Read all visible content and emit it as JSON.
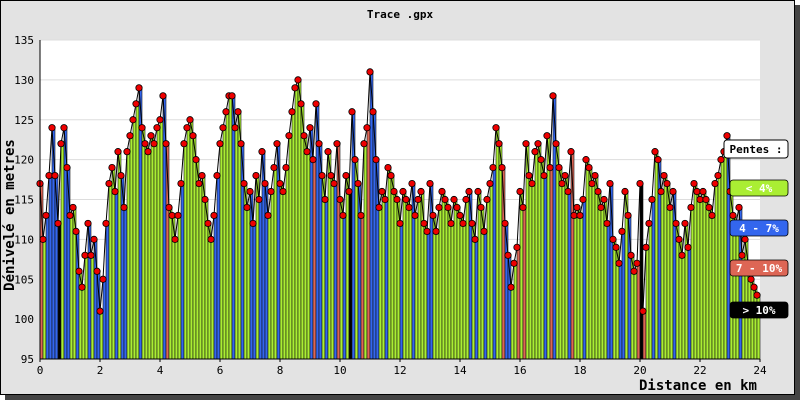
{
  "colors": {
    "frame_bg": "#e3e3e3",
    "plot_bg": "#ffffff",
    "grid": "#dddddd",
    "marker": "#ee0000",
    "stem": "#000000"
  },
  "chart_data": {
    "type": "bar",
    "title": "Trace .gpx",
    "xlabel": "Distance en km",
    "ylabel": "Dénivelé en metres",
    "xlim": [
      0,
      24
    ],
    "ylim": [
      95,
      135
    ],
    "x_ticks": [
      0,
      2,
      4,
      6,
      8,
      10,
      12,
      14,
      16,
      18,
      20,
      22,
      24
    ],
    "y_ticks": [
      95,
      100,
      105,
      110,
      115,
      120,
      125,
      130,
      135
    ],
    "grid": true,
    "legend_position": "right",
    "legend": {
      "title": "Pentes :",
      "items": [
        {
          "label": "< 4%",
          "color": "#aaee33",
          "text_color": "#ffffff"
        },
        {
          "label": "4 - 7%",
          "color": "#3366ee",
          "text_color": "#ffffff"
        },
        {
          "label": "7 - 10%",
          "color": "#dd6655",
          "text_color": "#ffffff"
        },
        {
          "label": "> 10%",
          "color": "#000000",
          "text_color": "#ffffff"
        }
      ]
    },
    "series": [
      {
        "values": [
          [
            0.0,
            117
          ],
          [
            0.1,
            110
          ],
          [
            0.2,
            113
          ],
          [
            0.3,
            118
          ],
          [
            0.4,
            124
          ],
          [
            0.5,
            118
          ],
          [
            0.6,
            112
          ],
          [
            0.7,
            122
          ],
          [
            0.8,
            124
          ],
          [
            0.9,
            119
          ],
          [
            1.0,
            113
          ],
          [
            1.1,
            114
          ],
          [
            1.2,
            111
          ],
          [
            1.3,
            106
          ],
          [
            1.4,
            104
          ],
          [
            1.5,
            108
          ],
          [
            1.6,
            112
          ],
          [
            1.7,
            108
          ],
          [
            1.8,
            110
          ],
          [
            1.9,
            106
          ],
          [
            2.0,
            101
          ],
          [
            2.1,
            105
          ],
          [
            2.2,
            112
          ],
          [
            2.3,
            117
          ],
          [
            2.4,
            119
          ],
          [
            2.5,
            116
          ],
          [
            2.6,
            121
          ],
          [
            2.7,
            118
          ],
          [
            2.8,
            114
          ],
          [
            2.9,
            121
          ],
          [
            3.0,
            123
          ],
          [
            3.1,
            125
          ],
          [
            3.2,
            127
          ],
          [
            3.3,
            129
          ],
          [
            3.4,
            124
          ],
          [
            3.5,
            122
          ],
          [
            3.6,
            121
          ],
          [
            3.7,
            123
          ],
          [
            3.8,
            122
          ],
          [
            3.9,
            124
          ],
          [
            4.0,
            125
          ],
          [
            4.1,
            128
          ],
          [
            4.2,
            122
          ],
          [
            4.3,
            114
          ],
          [
            4.4,
            113
          ],
          [
            4.5,
            110
          ],
          [
            4.6,
            113
          ],
          [
            4.7,
            117
          ],
          [
            4.8,
            122
          ],
          [
            4.9,
            124
          ],
          [
            5.0,
            125
          ],
          [
            5.1,
            123
          ],
          [
            5.2,
            120
          ],
          [
            5.3,
            117
          ],
          [
            5.4,
            118
          ],
          [
            5.5,
            115
          ],
          [
            5.6,
            112
          ],
          [
            5.7,
            110
          ],
          [
            5.8,
            113
          ],
          [
            5.9,
            118
          ],
          [
            6.0,
            122
          ],
          [
            6.1,
            124
          ],
          [
            6.2,
            126
          ],
          [
            6.3,
            128
          ],
          [
            6.4,
            128
          ],
          [
            6.5,
            124
          ],
          [
            6.6,
            126
          ],
          [
            6.7,
            122
          ],
          [
            6.8,
            117
          ],
          [
            6.9,
            114
          ],
          [
            7.0,
            116
          ],
          [
            7.1,
            112
          ],
          [
            7.2,
            118
          ],
          [
            7.3,
            115
          ],
          [
            7.4,
            121
          ],
          [
            7.5,
            117
          ],
          [
            7.6,
            113
          ],
          [
            7.7,
            116
          ],
          [
            7.8,
            119
          ],
          [
            7.9,
            122
          ],
          [
            8.0,
            117
          ],
          [
            8.1,
            116
          ],
          [
            8.2,
            119
          ],
          [
            8.3,
            123
          ],
          [
            8.4,
            126
          ],
          [
            8.5,
            129
          ],
          [
            8.6,
            130
          ],
          [
            8.7,
            127
          ],
          [
            8.8,
            123
          ],
          [
            8.9,
            121
          ],
          [
            9.0,
            124
          ],
          [
            9.1,
            120
          ],
          [
            9.2,
            127
          ],
          [
            9.3,
            122
          ],
          [
            9.4,
            118
          ],
          [
            9.5,
            115
          ],
          [
            9.6,
            121
          ],
          [
            9.7,
            118
          ],
          [
            9.8,
            117
          ],
          [
            9.9,
            122
          ],
          [
            10.0,
            115
          ],
          [
            10.1,
            113
          ],
          [
            10.2,
            118
          ],
          [
            10.3,
            116
          ],
          [
            10.4,
            126
          ],
          [
            10.5,
            120
          ],
          [
            10.6,
            117
          ],
          [
            10.7,
            113
          ],
          [
            10.8,
            122
          ],
          [
            10.9,
            124
          ],
          [
            11.0,
            131
          ],
          [
            11.1,
            126
          ],
          [
            11.2,
            120
          ],
          [
            11.3,
            114
          ],
          [
            11.4,
            116
          ],
          [
            11.5,
            115
          ],
          [
            11.6,
            119
          ],
          [
            11.7,
            118
          ],
          [
            11.8,
            116
          ],
          [
            11.9,
            115
          ],
          [
            12.0,
            112
          ],
          [
            12.1,
            116
          ],
          [
            12.2,
            115
          ],
          [
            12.3,
            114
          ],
          [
            12.4,
            117
          ],
          [
            12.5,
            113
          ],
          [
            12.6,
            115
          ],
          [
            12.7,
            116
          ],
          [
            12.8,
            112
          ],
          [
            12.9,
            111
          ],
          [
            13.0,
            117
          ],
          [
            13.1,
            113
          ],
          [
            13.2,
            111
          ],
          [
            13.3,
            114
          ],
          [
            13.4,
            116
          ],
          [
            13.5,
            115
          ],
          [
            13.6,
            114
          ],
          [
            13.7,
            112
          ],
          [
            13.8,
            115
          ],
          [
            13.9,
            114
          ],
          [
            14.0,
            113
          ],
          [
            14.1,
            112
          ],
          [
            14.2,
            115
          ],
          [
            14.3,
            116
          ],
          [
            14.4,
            112
          ],
          [
            14.5,
            110
          ],
          [
            14.6,
            116
          ],
          [
            14.7,
            114
          ],
          [
            14.8,
            111
          ],
          [
            14.9,
            115
          ],
          [
            15.0,
            117
          ],
          [
            15.1,
            119
          ],
          [
            15.2,
            124
          ],
          [
            15.3,
            122
          ],
          [
            15.4,
            119
          ],
          [
            15.5,
            112
          ],
          [
            15.6,
            108
          ],
          [
            15.7,
            104
          ],
          [
            15.8,
            107
          ],
          [
            15.9,
            109
          ],
          [
            16.0,
            116
          ],
          [
            16.1,
            114
          ],
          [
            16.2,
            122
          ],
          [
            16.3,
            118
          ],
          [
            16.4,
            117
          ],
          [
            16.5,
            121
          ],
          [
            16.6,
            122
          ],
          [
            16.7,
            120
          ],
          [
            16.8,
            118
          ],
          [
            16.9,
            123
          ],
          [
            17.0,
            119
          ],
          [
            17.1,
            128
          ],
          [
            17.2,
            122
          ],
          [
            17.3,
            119
          ],
          [
            17.4,
            117
          ],
          [
            17.5,
            118
          ],
          [
            17.6,
            116
          ],
          [
            17.7,
            121
          ],
          [
            17.8,
            113
          ],
          [
            17.9,
            114
          ],
          [
            18.0,
            113
          ],
          [
            18.1,
            115
          ],
          [
            18.2,
            120
          ],
          [
            18.3,
            119
          ],
          [
            18.4,
            117
          ],
          [
            18.5,
            118
          ],
          [
            18.6,
            116
          ],
          [
            18.7,
            114
          ],
          [
            18.8,
            115
          ],
          [
            18.9,
            112
          ],
          [
            19.0,
            117
          ],
          [
            19.1,
            110
          ],
          [
            19.2,
            109
          ],
          [
            19.3,
            107
          ],
          [
            19.4,
            111
          ],
          [
            19.5,
            116
          ],
          [
            19.6,
            113
          ],
          [
            19.7,
            108
          ],
          [
            19.8,
            106
          ],
          [
            19.9,
            107
          ],
          [
            20.0,
            117
          ],
          [
            20.1,
            101
          ],
          [
            20.2,
            109
          ],
          [
            20.3,
            112
          ],
          [
            20.4,
            115
          ],
          [
            20.5,
            121
          ],
          [
            20.6,
            120
          ],
          [
            20.7,
            116
          ],
          [
            20.8,
            118
          ],
          [
            20.9,
            117
          ],
          [
            21.0,
            114
          ],
          [
            21.1,
            116
          ],
          [
            21.2,
            112
          ],
          [
            21.3,
            110
          ],
          [
            21.4,
            108
          ],
          [
            21.5,
            112
          ],
          [
            21.6,
            109
          ],
          [
            21.7,
            114
          ],
          [
            21.8,
            117
          ],
          [
            21.9,
            116
          ],
          [
            22.0,
            115
          ],
          [
            22.1,
            116
          ],
          [
            22.2,
            115
          ],
          [
            22.3,
            114
          ],
          [
            22.4,
            113
          ],
          [
            22.5,
            117
          ],
          [
            22.6,
            118
          ],
          [
            22.7,
            120
          ],
          [
            22.8,
            121
          ],
          [
            22.9,
            123
          ],
          [
            23.0,
            116
          ],
          [
            23.1,
            113
          ],
          [
            23.2,
            112
          ],
          [
            23.3,
            114
          ],
          [
            23.4,
            108
          ],
          [
            23.5,
            110
          ],
          [
            23.6,
            107
          ],
          [
            23.7,
            105
          ],
          [
            23.8,
            104
          ],
          [
            23.9,
            103
          ]
        ]
      }
    ]
  }
}
